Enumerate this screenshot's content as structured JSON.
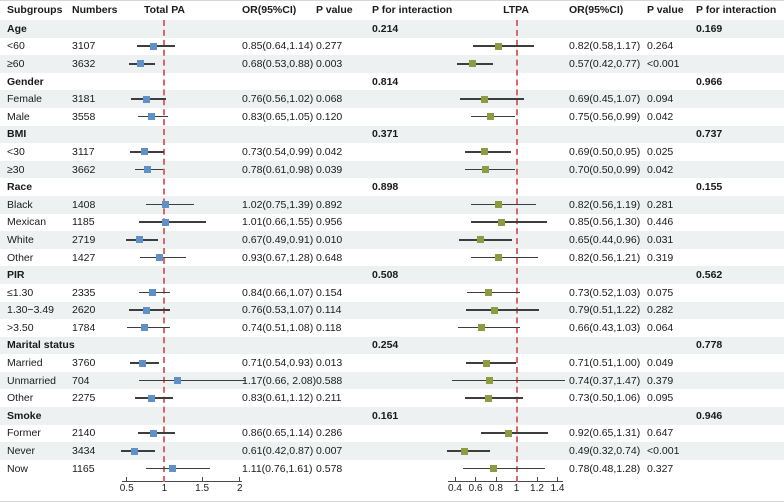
{
  "header": {
    "columns": [
      "Subgroups",
      "Numbers",
      "Total PA",
      "OR(95%CI)",
      "P value",
      "P for interaction",
      "LTPA",
      "OR(95%CI)",
      "P value",
      "P for interaction"
    ]
  },
  "colors": {
    "total_pa_marker": "#5f90c6",
    "ltpa_marker": "#8d9c43",
    "reference_line": "#d9686a",
    "ci_line": "#3d3d3d",
    "alt_row": "#edf1f1"
  },
  "chart_data": {
    "type": "forest",
    "panels": [
      {
        "name": "Total PA",
        "axis_ticks": [
          0.5,
          1,
          1.5,
          2
        ],
        "reference": 1
      },
      {
        "name": "LTPA",
        "axis_ticks": [
          0.4,
          0.6,
          0.8,
          1,
          1.2,
          1.4
        ],
        "reference": 1
      }
    ],
    "rows": [
      {
        "group": "Age",
        "pint1": "0.214",
        "pint2": "0.169"
      },
      {
        "label": "<60",
        "n": "3107",
        "pa": {
          "lo": 0.64,
          "or": 0.85,
          "hi": 1.14,
          "text": "0.85(0.64,1.14)",
          "p": "0.277"
        },
        "lt": {
          "lo": 0.58,
          "or": 0.82,
          "hi": 1.17,
          "text": "0.82(0.58,1.17)",
          "p": "0.264"
        }
      },
      {
        "label": "≥60",
        "n": "3632",
        "pa": {
          "lo": 0.53,
          "or": 0.68,
          "hi": 0.88,
          "text": "0.68(0.53,0.88)",
          "p": "0.003"
        },
        "lt": {
          "lo": 0.42,
          "or": 0.57,
          "hi": 0.77,
          "text": "0.57(0.42,0.77)",
          "p": "<0.001"
        }
      },
      {
        "group": "Gender",
        "pint1": "0.814",
        "pint2": "0.966"
      },
      {
        "label": "Female",
        "n": "3181",
        "pa": {
          "lo": 0.56,
          "or": 0.76,
          "hi": 1.02,
          "text": "0.76(0.56,1.02)",
          "p": "0.068"
        },
        "lt": {
          "lo": 0.45,
          "or": 0.69,
          "hi": 1.07,
          "text": "0.69(0.45,1.07)",
          "p": "0.094"
        }
      },
      {
        "label": "Male",
        "n": "3558",
        "pa": {
          "lo": 0.65,
          "or": 0.83,
          "hi": 1.05,
          "text": "0.83(0.65,1.05)",
          "p": "0.120"
        },
        "lt": {
          "lo": 0.56,
          "or": 0.75,
          "hi": 0.99,
          "text": "0.75(0.56,0.99)",
          "p": "0.042"
        }
      },
      {
        "group": "BMI",
        "pint1": "0.371",
        "pint2": "0.737"
      },
      {
        "label": "<30",
        "n": "3117",
        "pa": {
          "lo": 0.54,
          "or": 0.73,
          "hi": 0.99,
          "text": "0.73(0.54,0.99)",
          "p": "0.042"
        },
        "lt": {
          "lo": 0.5,
          "or": 0.69,
          "hi": 0.95,
          "text": "0.69(0.50,0.95)",
          "p": "0.025"
        }
      },
      {
        "label": "≥30",
        "n": "3662",
        "pa": {
          "lo": 0.61,
          "or": 0.78,
          "hi": 0.98,
          "text": "0.78(0.61,0.98)",
          "p": "0.039"
        },
        "lt": {
          "lo": 0.5,
          "or": 0.7,
          "hi": 0.99,
          "text": "0.70(0.50,0.99)",
          "p": "0.042"
        }
      },
      {
        "group": "Race",
        "pint1": "0.898",
        "pint2": "0.155"
      },
      {
        "label": "Black",
        "n": "1408",
        "pa": {
          "lo": 0.75,
          "or": 1.02,
          "hi": 1.39,
          "text": "1.02(0.75,1.39)",
          "p": "0.892"
        },
        "lt": {
          "lo": 0.56,
          "or": 0.82,
          "hi": 1.19,
          "text": "0.82(0.56,1.19)",
          "p": "0.281"
        }
      },
      {
        "label": "Mexican",
        "n": "1185",
        "pa": {
          "lo": 0.66,
          "or": 1.01,
          "hi": 1.55,
          "text": "1.01(0.66,1.55)",
          "p": "0.956"
        },
        "lt": {
          "lo": 0.56,
          "or": 0.85,
          "hi": 1.3,
          "text": "0.85(0.56,1.30)",
          "p": "0.446"
        }
      },
      {
        "label": "White",
        "n": "2719",
        "pa": {
          "lo": 0.49,
          "or": 0.67,
          "hi": 0.91,
          "text": "0.67(0.49,0.91)",
          "p": "0.010"
        },
        "lt": {
          "lo": 0.44,
          "or": 0.65,
          "hi": 0.96,
          "text": "0.65(0.44,0.96)",
          "p": "0.031"
        }
      },
      {
        "label": "Other",
        "n": "1427",
        "pa": {
          "lo": 0.67,
          "or": 0.93,
          "hi": 1.28,
          "text": "0.93(0.67,1.28)",
          "p": "0.648"
        },
        "lt": {
          "lo": 0.56,
          "or": 0.82,
          "hi": 1.21,
          "text": "0.82(0.56,1.21)",
          "p": "0.319"
        }
      },
      {
        "group": "PIR",
        "pint1": "0.508",
        "pint2": "0.562"
      },
      {
        "label": "≤1.30",
        "n": "2335",
        "pa": {
          "lo": 0.66,
          "or": 0.84,
          "hi": 1.07,
          "text": "0.84(0.66,1.07)",
          "p": "0.154"
        },
        "lt": {
          "lo": 0.52,
          "or": 0.73,
          "hi": 1.03,
          "text": "0.73(0.52,1.03)",
          "p": "0.075"
        }
      },
      {
        "label": "1.30−3.49",
        "n": "2620",
        "pa": {
          "lo": 0.53,
          "or": 0.76,
          "hi": 1.07,
          "text": "0.76(0.53,1.07)",
          "p": "0.114"
        },
        "lt": {
          "lo": 0.51,
          "or": 0.79,
          "hi": 1.22,
          "text": "0.79(0.51,1.22)",
          "p": "0.282"
        }
      },
      {
        "label": ">3.50",
        "n": "1784",
        "pa": {
          "lo": 0.51,
          "or": 0.74,
          "hi": 1.08,
          "text": "0.74(0.51,1.08)",
          "p": "0.118"
        },
        "lt": {
          "lo": 0.43,
          "or": 0.66,
          "hi": 1.03,
          "text": "0.66(0.43,1.03)",
          "p": "0.064"
        }
      },
      {
        "group": "Marital status",
        "pint1": "0.254",
        "pint2": "0.778"
      },
      {
        "label": "Married",
        "n": "3760",
        "pa": {
          "lo": 0.54,
          "or": 0.71,
          "hi": 0.93,
          "text": "0.71(0.54,0.93)",
          "p": "0.013"
        },
        "lt": {
          "lo": 0.51,
          "or": 0.71,
          "hi": 1.0,
          "text": "0.71(0.51,1.00)",
          "p": "0.049"
        }
      },
      {
        "label": "Unmarried",
        "n": "704",
        "pa": {
          "lo": 0.66,
          "or": 1.17,
          "hi": 2.08,
          "text": "1.17(0.66, 2.08)",
          "p": "0.588"
        },
        "lt": {
          "lo": 0.37,
          "or": 0.74,
          "hi": 1.47,
          "text": "0.74(0.37,1.47)",
          "p": "0.379"
        }
      },
      {
        "label": "Other",
        "n": "2275",
        "pa": {
          "lo": 0.61,
          "or": 0.83,
          "hi": 1.12,
          "text": "0.83(0.61,1.12)",
          "p": "0.211"
        },
        "lt": {
          "lo": 0.5,
          "or": 0.73,
          "hi": 1.06,
          "text": "0.73(0.50,1.06)",
          "p": "0.095"
        }
      },
      {
        "group": "Smoke",
        "pint1": "0.161",
        "pint2": "0.946"
      },
      {
        "label": "Former",
        "n": "2140",
        "pa": {
          "lo": 0.65,
          "or": 0.86,
          "hi": 1.14,
          "text": "0.86(0.65,1.14)",
          "p": "0.286"
        },
        "lt": {
          "lo": 0.65,
          "or": 0.92,
          "hi": 1.31,
          "text": "0.92(0.65,1.31)",
          "p": "0.647"
        }
      },
      {
        "label": "Never",
        "n": "3434",
        "pa": {
          "lo": 0.42,
          "or": 0.61,
          "hi": 0.87,
          "text": "0.61(0.42,0.87)",
          "p": "0.007"
        },
        "lt": {
          "lo": 0.32,
          "or": 0.49,
          "hi": 0.74,
          "text": "0.49(0.32,0.74)",
          "p": "<0.001"
        }
      },
      {
        "label": "Now",
        "n": "1165",
        "pa": {
          "lo": 0.76,
          "or": 1.11,
          "hi": 1.61,
          "text": "1.11(0.76,1.61)",
          "p": "0.578"
        },
        "lt": {
          "lo": 0.48,
          "or": 0.78,
          "hi": 1.28,
          "text": "0.78(0.48,1.28)",
          "p": "0.327"
        }
      }
    ]
  }
}
